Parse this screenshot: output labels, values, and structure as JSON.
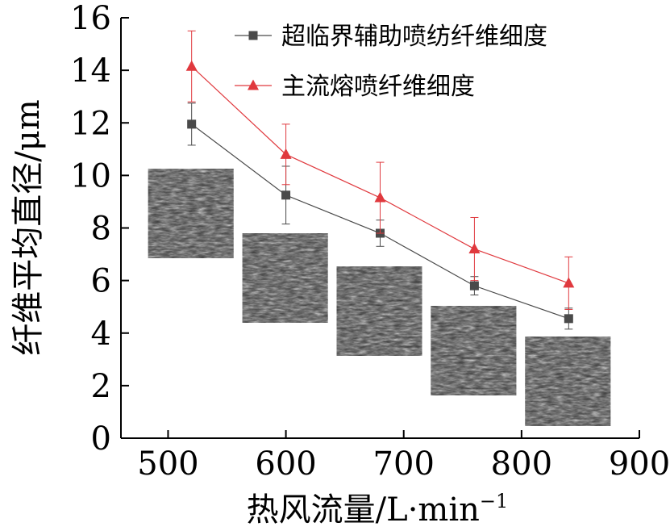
{
  "chart_data": {
    "type": "line",
    "x": [
      520,
      600,
      680,
      760,
      840
    ],
    "xlabel": "热风流量/L·min",
    "xlabel_superscript": "−1",
    "ylabel": "纤维平均直径/μm",
    "xlim": [
      460,
      900
    ],
    "ylim": [
      0,
      16
    ],
    "x_ticks": [
      "500",
      "600",
      "700",
      "800",
      "900"
    ],
    "y_ticks": [
      "0",
      "2",
      "4",
      "6",
      "8",
      "10",
      "12",
      "14",
      "16"
    ],
    "grid": false,
    "legend_position": "top-right",
    "series": [
      {
        "name": "超临界辅助喷纺纤维细度",
        "marker": "square",
        "color": "#4a4a4a",
        "values": [
          11.95,
          9.25,
          7.8,
          5.8,
          4.55
        ],
        "error": [
          0.8,
          1.1,
          0.5,
          0.35,
          0.4
        ]
      },
      {
        "name": "主流熔喷纤维细度",
        "marker": "triangle",
        "color": "#e0393e",
        "values": [
          14.15,
          10.8,
          9.15,
          7.2,
          5.9
        ],
        "error": [
          1.35,
          1.15,
          1.35,
          1.2,
          1.0
        ]
      }
    ],
    "insets": [
      {
        "name": "sem-image-520",
        "x": 520
      },
      {
        "name": "sem-image-600",
        "x": 600
      },
      {
        "name": "sem-image-680",
        "x": 680
      },
      {
        "name": "sem-image-760",
        "x": 760
      },
      {
        "name": "sem-image-840",
        "x": 840
      }
    ]
  }
}
